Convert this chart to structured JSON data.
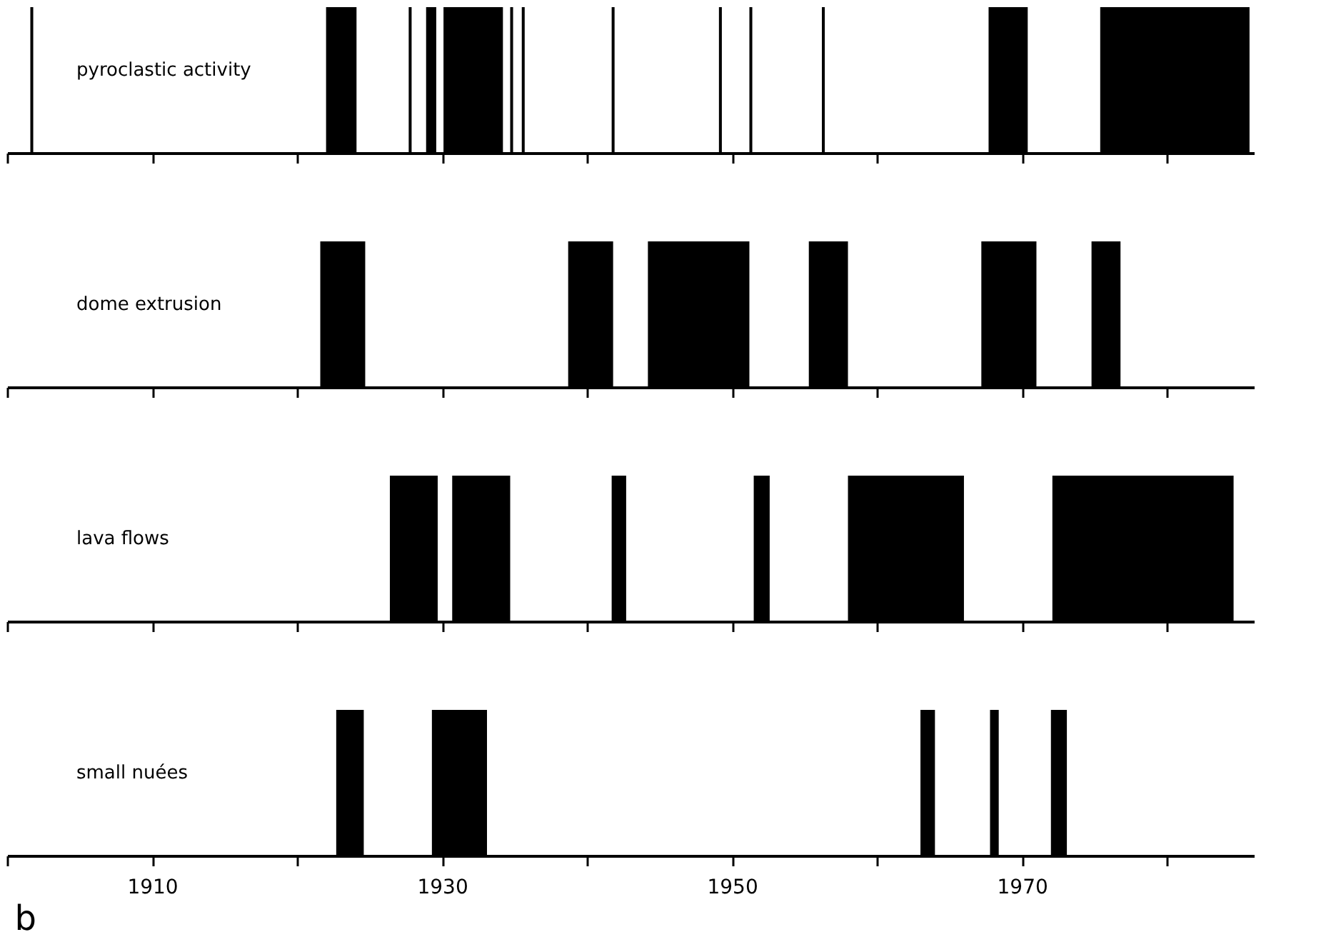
{
  "chart_data": [
    {
      "type": "bar",
      "orientation": "horizontal",
      "categories": [
        "pyroclastic activity"
      ],
      "xlim": [
        1900,
        1986
      ],
      "xticks": [
        1900,
        1910,
        1920,
        1930,
        1940,
        1950,
        1960,
        1970,
        1980
      ],
      "tick_labels": "y",
      "series": [
        {
          "color": "#000000",
          "base": [
            1901.6
          ],
          "values": [
            0.2
          ]
        },
        {
          "color": "#000000",
          "base": [
            1922.0
          ],
          "values": [
            2.1
          ]
        },
        {
          "color": "#000000",
          "base": [
            1927.7
          ],
          "values": [
            0.2
          ]
        },
        {
          "color": "#000000",
          "base": [
            1928.9
          ],
          "values": [
            0.7
          ]
        },
        {
          "color": "#000000",
          "base": [
            1930.1
          ],
          "values": [
            4.1
          ]
        },
        {
          "color": "#000000",
          "base": [
            1934.7
          ],
          "values": [
            0.2
          ]
        },
        {
          "color": "#000000",
          "base": [
            1935.5
          ],
          "values": [
            0.2
          ]
        },
        {
          "color": "#000000",
          "base": [
            1941.7
          ],
          "values": [
            0.2
          ]
        },
        {
          "color": "#000000",
          "base": [
            1949.1
          ],
          "values": [
            0.2
          ]
        },
        {
          "color": "#000000",
          "base": [
            1951.2
          ],
          "values": [
            0.2
          ]
        },
        {
          "color": "#000000",
          "base": [
            1956.2
          ],
          "values": [
            0.2
          ]
        },
        {
          "color": "#000000",
          "base": [
            1967.7
          ],
          "values": [
            2.7
          ]
        },
        {
          "color": "#000000",
          "base": [
            1975.4
          ],
          "values": [
            10.3
          ]
        }
      ]
    },
    {
      "type": "bar",
      "orientation": "horizontal",
      "categories": [
        "dome extrusion"
      ],
      "xlim": [
        1900,
        1986
      ],
      "xticks": [
        1900,
        1910,
        1920,
        1930,
        1940,
        1950,
        1960,
        1970,
        1980
      ],
      "tick_labels": "y",
      "series": [
        {
          "color": "#000000",
          "base": [
            1921.6
          ],
          "values": [
            3.1
          ]
        },
        {
          "color": "#000000",
          "base": [
            1938.7
          ],
          "values": [
            3.1
          ]
        },
        {
          "color": "#000000",
          "base": [
            1944.2
          ],
          "values": [
            7.0
          ]
        },
        {
          "color": "#000000",
          "base": [
            1955.3
          ],
          "values": [
            2.7
          ]
        },
        {
          "color": "#000000",
          "base": [
            1967.2
          ],
          "values": [
            3.8
          ]
        },
        {
          "color": "#000000",
          "base": [
            1974.8
          ],
          "values": [
            2.0
          ]
        }
      ]
    },
    {
      "type": "bar",
      "orientation": "horizontal",
      "categories": [
        "lava flows"
      ],
      "xlim": [
        1900,
        1986
      ],
      "xticks": [
        1900,
        1910,
        1920,
        1930,
        1940,
        1950,
        1960,
        1970,
        1980
      ],
      "tick_labels": "y",
      "series": [
        {
          "color": "#000000",
          "base": [
            1926.4
          ],
          "values": [
            3.3
          ]
        },
        {
          "color": "#000000",
          "base": [
            1930.7
          ],
          "values": [
            4.0
          ]
        },
        {
          "color": "#000000",
          "base": [
            1941.7
          ],
          "values": [
            1.0
          ]
        },
        {
          "color": "#000000",
          "base": [
            1951.5
          ],
          "values": [
            1.1
          ]
        },
        {
          "color": "#000000",
          "base": [
            1958.0
          ],
          "values": [
            8.0
          ]
        },
        {
          "color": "#000000",
          "base": [
            1972.1
          ],
          "values": [
            12.5
          ]
        }
      ]
    },
    {
      "type": "bar",
      "orientation": "horizontal",
      "categories": [
        "small nuées"
      ],
      "xlim": [
        1900,
        1986
      ],
      "xticks": [
        {
          "value": 1900,
          "label": null
        },
        1910,
        {
          "value": 1920,
          "label": null
        },
        1930,
        {
          "value": 1940,
          "label": null
        },
        1950,
        {
          "value": 1960,
          "label": null
        },
        1970,
        {
          "value": 1980,
          "label": null
        }
      ],
      "annotations": [
        "b"
      ],
      "series": [
        {
          "color": "#000000",
          "base": [
            1922.7
          ],
          "values": [
            1.9
          ]
        },
        {
          "color": "#000000",
          "base": [
            1929.3
          ],
          "values": [
            3.8
          ]
        },
        {
          "color": "#000000",
          "base": [
            1963.0
          ],
          "values": [
            1.0
          ]
        },
        {
          "color": "#000000",
          "base": [
            1967.8
          ],
          "values": [
            0.6
          ]
        },
        {
          "color": "#000000",
          "base": [
            1972.0
          ],
          "values": [
            1.1
          ]
        }
      ]
    }
  ]
}
